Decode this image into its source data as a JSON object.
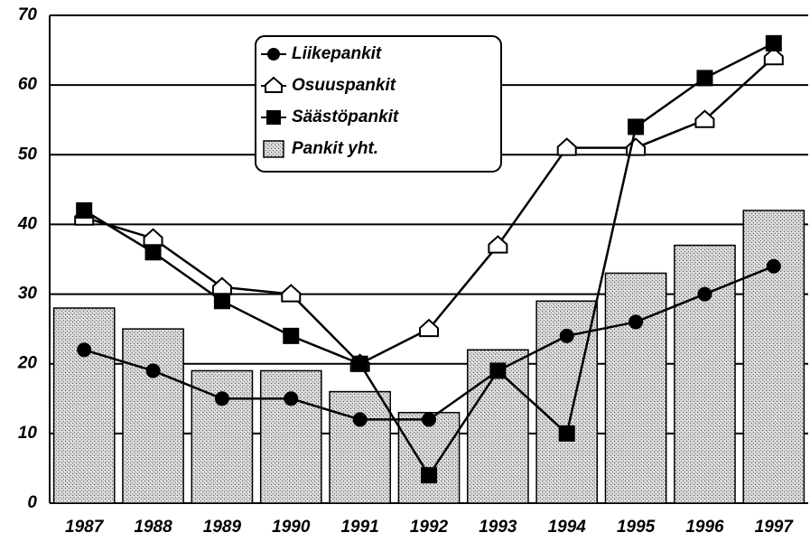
{
  "chart_data": {
    "type": "combo",
    "categories": [
      "1987",
      "1988",
      "1989",
      "1990",
      "1991",
      "1992",
      "1993",
      "1994",
      "1995",
      "1996",
      "1997"
    ],
    "series": [
      {
        "name": "Liikepankit",
        "type": "line",
        "marker": "circle",
        "color": "#000000",
        "values": [
          22,
          19,
          15,
          15,
          12,
          12,
          19,
          24,
          26,
          30,
          34
        ]
      },
      {
        "name": "Osuuspankit",
        "type": "line",
        "marker": "pentagon",
        "color": "#000000",
        "values": [
          41,
          38,
          31,
          30,
          20,
          25,
          37,
          51,
          51,
          55,
          64
        ]
      },
      {
        "name": "Säästöpankit",
        "type": "line",
        "marker": "square",
        "color": "#000000",
        "values": [
          42,
          36,
          29,
          24,
          20,
          4,
          19,
          10,
          54,
          61,
          66
        ]
      },
      {
        "name": "Pankit yht.",
        "type": "bar",
        "color": "#c8c8c8",
        "values": [
          28,
          25,
          19,
          19,
          16,
          13,
          22,
          29,
          33,
          37,
          42
        ]
      }
    ],
    "ylim": [
      0,
      70
    ],
    "yticks": [
      0,
      10,
      20,
      30,
      40,
      50,
      60,
      70
    ],
    "grid": true,
    "legend": "top"
  }
}
